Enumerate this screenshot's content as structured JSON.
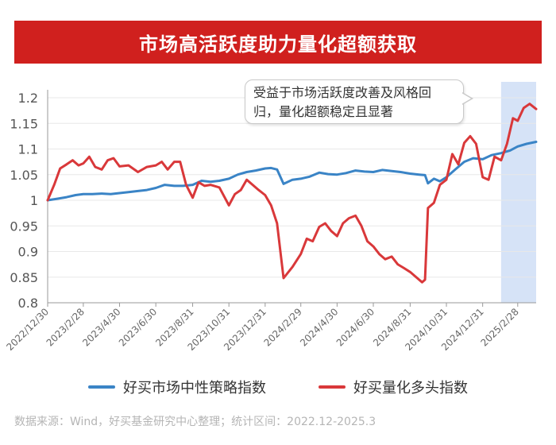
{
  "banner": {
    "title": "市场高活跃度助力量化超额获取"
  },
  "callout": {
    "text": "受益于市场活跃度改善及风格回归，量化超额稳定且显著"
  },
  "legend": {
    "series1": "好买市场中性策略指数",
    "series2": "好买量化多头指数"
  },
  "source": "数据来源：Wind，好买基金研究中心整理；统计区间：2022.12-2025.3",
  "colors": {
    "banner": "#d0201e",
    "series1": "#3a84c6",
    "series2": "#d9383a",
    "highlight": "#d6e3f7"
  },
  "chart_data": {
    "type": "line",
    "ylim": [
      0.8,
      1.2
    ],
    "yticks": [
      "0.8",
      "0.85",
      "0.9",
      "0.95",
      "1",
      "1.05",
      "1.1",
      "1.15",
      "1.2"
    ],
    "xticks": [
      "2022/12/30",
      "2023/2/28",
      "2023/4/30",
      "2023/6/30",
      "2023/8/31",
      "2023/10/31",
      "2023/12/31",
      "2024/2/29",
      "2024/4/30",
      "2024/6/30",
      "2024/8/31",
      "2024/10/31",
      "2024/12/31",
      "2025/2/28"
    ],
    "highlight_range": [
      "2025/1/31",
      "2025/3/31"
    ],
    "series": [
      {
        "name": "好买市场中性策略指数",
        "points": [
          [
            "2022/12/30",
            1.0
          ],
          [
            "2023/1/15",
            1.003
          ],
          [
            "2023/1/31",
            1.006
          ],
          [
            "2023/2/15",
            1.01
          ],
          [
            "2023/2/28",
            1.012
          ],
          [
            "2023/3/15",
            1.012
          ],
          [
            "2023/3/31",
            1.013
          ],
          [
            "2023/4/15",
            1.012
          ],
          [
            "2023/4/30",
            1.014
          ],
          [
            "2023/5/15",
            1.016
          ],
          [
            "2023/5/31",
            1.018
          ],
          [
            "2023/6/15",
            1.02
          ],
          [
            "2023/6/30",
            1.024
          ],
          [
            "2023/7/15",
            1.03
          ],
          [
            "2023/7/31",
            1.028
          ],
          [
            "2023/8/15",
            1.028
          ],
          [
            "2023/8/31",
            1.03
          ],
          [
            "2023/9/15",
            1.038
          ],
          [
            "2023/9/30",
            1.036
          ],
          [
            "2023/10/15",
            1.038
          ],
          [
            "2023/10/31",
            1.042
          ],
          [
            "2023/11/15",
            1.05
          ],
          [
            "2023/11/30",
            1.055
          ],
          [
            "2023/12/15",
            1.058
          ],
          [
            "2023/12/31",
            1.062
          ],
          [
            "2024/1/10",
            1.063
          ],
          [
            "2024/1/20",
            1.06
          ],
          [
            "2024/1/31",
            1.032
          ],
          [
            "2024/2/15",
            1.04
          ],
          [
            "2024/2/29",
            1.042
          ],
          [
            "2024/3/15",
            1.046
          ],
          [
            "2024/3/31",
            1.054
          ],
          [
            "2024/4/15",
            1.051
          ],
          [
            "2024/4/30",
            1.05
          ],
          [
            "2024/5/15",
            1.053
          ],
          [
            "2024/5/31",
            1.058
          ],
          [
            "2024/6/15",
            1.056
          ],
          [
            "2024/6/30",
            1.055
          ],
          [
            "2024/7/15",
            1.059
          ],
          [
            "2024/7/31",
            1.057
          ],
          [
            "2024/8/15",
            1.055
          ],
          [
            "2024/8/31",
            1.052
          ],
          [
            "2024/9/15",
            1.05
          ],
          [
            "2024/9/25",
            1.049
          ],
          [
            "2024/9/30",
            1.033
          ],
          [
            "2024/10/10",
            1.042
          ],
          [
            "2024/10/20",
            1.037
          ],
          [
            "2024/10/31",
            1.045
          ],
          [
            "2024/11/15",
            1.06
          ],
          [
            "2024/11/30",
            1.075
          ],
          [
            "2024/12/15",
            1.082
          ],
          [
            "2024/12/31",
            1.08
          ],
          [
            "2025/1/15",
            1.088
          ],
          [
            "2025/1/31",
            1.092
          ],
          [
            "2025/2/15",
            1.097
          ],
          [
            "2025/2/28",
            1.105
          ],
          [
            "2025/3/15",
            1.11
          ],
          [
            "2025/3/31",
            1.114
          ]
        ]
      },
      {
        "name": "好买量化多头指数",
        "points": [
          [
            "2022/12/30",
            1.0
          ],
          [
            "2023/1/10",
            1.03
          ],
          [
            "2023/1/20",
            1.062
          ],
          [
            "2023/1/31",
            1.07
          ],
          [
            "2023/2/10",
            1.078
          ],
          [
            "2023/2/20",
            1.068
          ],
          [
            "2023/2/28",
            1.072
          ],
          [
            "2023/3/10",
            1.085
          ],
          [
            "2023/3/20",
            1.065
          ],
          [
            "2023/3/31",
            1.06
          ],
          [
            "2023/4/10",
            1.078
          ],
          [
            "2023/4/20",
            1.082
          ],
          [
            "2023/4/30",
            1.066
          ],
          [
            "2023/5/15",
            1.068
          ],
          [
            "2023/5/31",
            1.055
          ],
          [
            "2023/6/15",
            1.065
          ],
          [
            "2023/6/30",
            1.068
          ],
          [
            "2023/7/10",
            1.075
          ],
          [
            "2023/7/20",
            1.06
          ],
          [
            "2023/7/31",
            1.075
          ],
          [
            "2023/8/10",
            1.075
          ],
          [
            "2023/8/20",
            1.03
          ],
          [
            "2023/8/31",
            1.005
          ],
          [
            "2023/9/10",
            1.035
          ],
          [
            "2023/9/20",
            1.028
          ],
          [
            "2023/9/30",
            1.03
          ],
          [
            "2023/10/15",
            1.025
          ],
          [
            "2023/10/31",
            0.99
          ],
          [
            "2023/11/10",
            1.012
          ],
          [
            "2023/11/20",
            1.02
          ],
          [
            "2023/11/30",
            1.04
          ],
          [
            "2023/12/10",
            1.03
          ],
          [
            "2023/12/20",
            1.02
          ],
          [
            "2023/12/31",
            1.01
          ],
          [
            "2024/1/10",
            0.99
          ],
          [
            "2024/1/20",
            0.955
          ],
          [
            "2024/1/31",
            0.848
          ],
          [
            "2024/2/15",
            0.87
          ],
          [
            "2024/2/29",
            0.895
          ],
          [
            "2024/3/10",
            0.925
          ],
          [
            "2024/3/20",
            0.92
          ],
          [
            "2024/3/31",
            0.948
          ],
          [
            "2024/4/10",
            0.955
          ],
          [
            "2024/4/20",
            0.94
          ],
          [
            "2024/4/30",
            0.93
          ],
          [
            "2024/5/10",
            0.955
          ],
          [
            "2024/5/20",
            0.965
          ],
          [
            "2024/5/31",
            0.97
          ],
          [
            "2024/6/10",
            0.95
          ],
          [
            "2024/6/20",
            0.92
          ],
          [
            "2024/6/30",
            0.91
          ],
          [
            "2024/7/10",
            0.895
          ],
          [
            "2024/7/20",
            0.885
          ],
          [
            "2024/7/31",
            0.89
          ],
          [
            "2024/8/10",
            0.875
          ],
          [
            "2024/8/20",
            0.868
          ],
          [
            "2024/8/31",
            0.86
          ],
          [
            "2024/9/10",
            0.85
          ],
          [
            "2024/9/20",
            0.84
          ],
          [
            "2024/9/25",
            0.845
          ],
          [
            "2024/9/30",
            0.985
          ],
          [
            "2024/10/10",
            0.995
          ],
          [
            "2024/10/20",
            1.03
          ],
          [
            "2024/10/31",
            1.04
          ],
          [
            "2024/11/10",
            1.09
          ],
          [
            "2024/11/20",
            1.07
          ],
          [
            "2024/11/30",
            1.112
          ],
          [
            "2024/12/10",
            1.125
          ],
          [
            "2024/12/20",
            1.11
          ],
          [
            "2024/12/31",
            1.045
          ],
          [
            "2025/1/10",
            1.04
          ],
          [
            "2025/1/20",
            1.085
          ],
          [
            "2025/1/31",
            1.078
          ],
          [
            "2025/2/10",
            1.11
          ],
          [
            "2025/2/20",
            1.16
          ],
          [
            "2025/2/28",
            1.155
          ],
          [
            "2025/3/10",
            1.18
          ],
          [
            "2025/3/20",
            1.188
          ],
          [
            "2025/3/31",
            1.178
          ]
        ]
      }
    ]
  }
}
